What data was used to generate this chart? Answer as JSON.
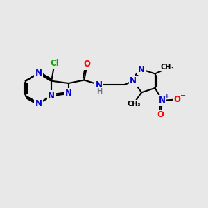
{
  "bg_color": "#e8e8e8",
  "bond_color": "#000000",
  "bond_width": 1.5,
  "atom_colors": {
    "N": "#0000cc",
    "O": "#ff0000",
    "Cl": "#00aa00",
    "C": "#000000",
    "H": "#707070"
  },
  "font_size_atom": 8.5,
  "font_size_small": 7.0
}
